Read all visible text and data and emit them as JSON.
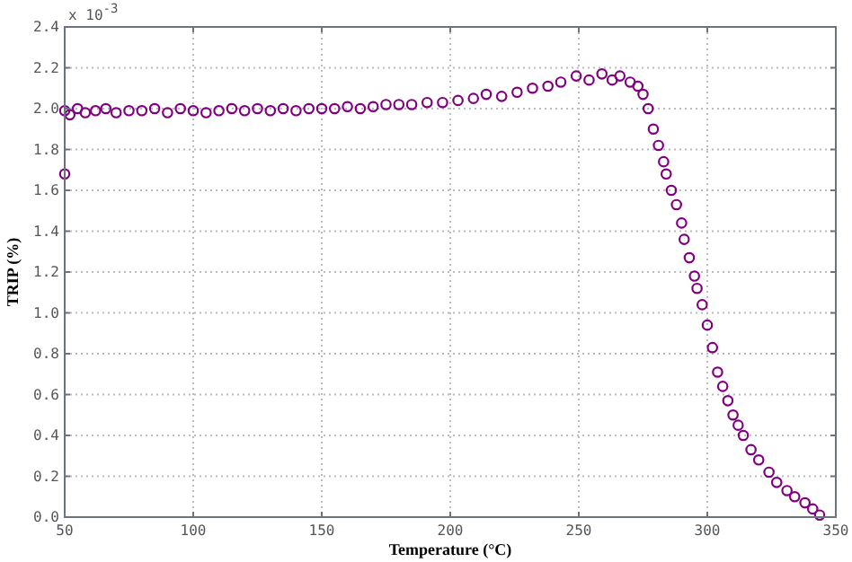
{
  "chart_data": {
    "type": "scatter",
    "xlabel": "Temperature (°C)",
    "ylabel": "TRIP (%)",
    "annotations": [
      "x 10$^{-3}$"
    ],
    "xlim": [
      50,
      350
    ],
    "xticks": [
      50,
      100,
      150,
      200,
      250,
      300,
      350
    ],
    "ylim": [
      0,
      2.4
    ],
    "yticks": [
      {
        "value": 0,
        "label": "0.0"
      },
      0.2,
      0.4,
      0.6,
      0.8,
      {
        "value": 1,
        "label": "1.0"
      },
      1.2,
      1.4,
      1.6,
      1.8,
      {
        "value": 2,
        "label": "2.0"
      },
      2.2,
      2.4
    ],
    "grid": true,
    "marker": "circle",
    "series": [
      {
        "color": "#800080",
        "x": [
          50,
          50,
          52,
          55,
          58,
          62,
          66,
          70,
          75,
          80,
          85,
          90,
          95,
          100,
          105,
          110,
          115,
          120,
          125,
          130,
          135,
          140,
          145,
          150,
          155,
          160,
          165,
          170,
          175,
          180,
          185,
          191,
          197,
          203,
          209,
          214,
          220,
          226,
          232,
          238,
          243,
          249,
          254,
          259,
          263,
          266,
          270,
          273,
          275,
          277,
          279,
          281,
          283,
          284,
          286,
          288,
          290,
          291,
          293,
          295,
          296,
          298,
          300,
          302,
          304,
          306,
          308,
          310,
          312,
          314,
          317,
          320,
          324,
          327,
          331,
          334,
          338,
          341,
          343.7
        ],
        "values": [
          1.68,
          1.99,
          1.97,
          2.0,
          1.98,
          1.99,
          2.0,
          1.98,
          1.99,
          1.99,
          2.0,
          1.98,
          2.0,
          1.99,
          1.98,
          1.99,
          2.0,
          1.99,
          2.0,
          1.99,
          2.0,
          1.99,
          2.0,
          2.0,
          2.0,
          2.01,
          2.0,
          2.01,
          2.02,
          2.02,
          2.02,
          2.03,
          2.03,
          2.04,
          2.05,
          2.07,
          2.06,
          2.08,
          2.1,
          2.11,
          2.13,
          2.16,
          2.14,
          2.17,
          2.14,
          2.16,
          2.13,
          2.11,
          2.07,
          2.0,
          1.9,
          1.82,
          1.74,
          1.68,
          1.6,
          1.53,
          1.44,
          1.36,
          1.27,
          1.18,
          1.12,
          1.04,
          0.94,
          0.83,
          0.71,
          0.64,
          0.57,
          0.5,
          0.45,
          0.4,
          0.33,
          0.28,
          0.22,
          0.17,
          0.13,
          0.1,
          0.07,
          0.04,
          0.01
        ]
      }
    ]
  }
}
